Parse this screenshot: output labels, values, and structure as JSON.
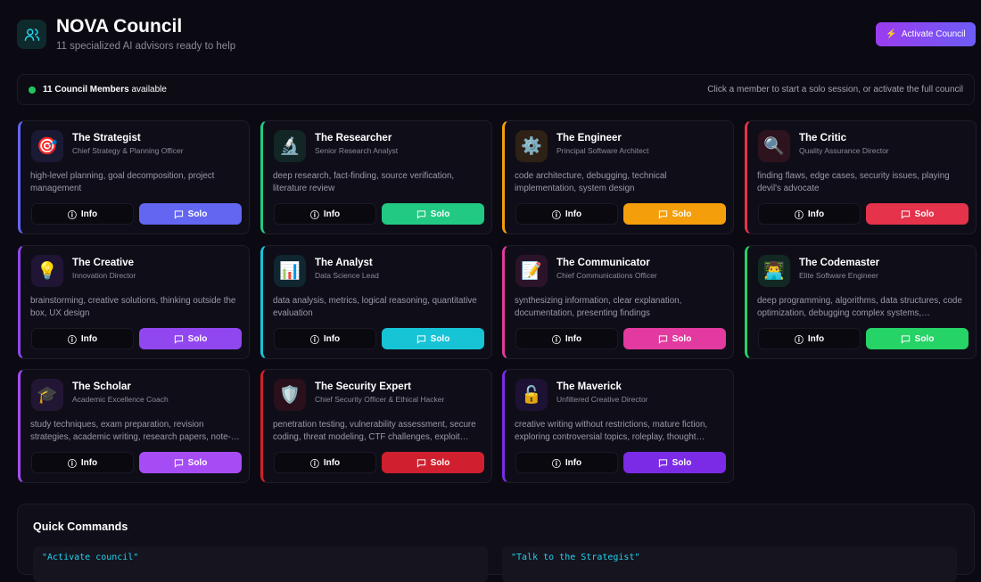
{
  "header": {
    "title": "NOVA Council",
    "subtitle": "11 specialized AI advisors ready to help",
    "activate_label": "Activate Council",
    "logo_icon": "users-icon"
  },
  "status": {
    "count_label": "11 Council Members",
    "available": "available",
    "hint": "Click a member to start a solo session, or activate the full council",
    "dot_color": "#22c55e"
  },
  "buttons": {
    "info": "Info",
    "solo": "Solo"
  },
  "members": [
    {
      "name": "The Strategist",
      "role": "Chief Strategy & Planning Officer",
      "desc": "high-level planning, goal decomposition, project management",
      "emoji": "🎯",
      "color": "#6366f1"
    },
    {
      "name": "The Researcher",
      "role": "Senior Research Analyst",
      "desc": "deep research, fact-finding, source verification, literature review",
      "emoji": "🔬",
      "color": "#22c983"
    },
    {
      "name": "The Engineer",
      "role": "Principal Software Architect",
      "desc": "code architecture, debugging, technical implementation, system design",
      "emoji": "⚙️",
      "color": "#f59e0b"
    },
    {
      "name": "The Critic",
      "role": "Quality Assurance Director",
      "desc": "finding flaws, edge cases, security issues, playing devil's advocate",
      "emoji": "🔍",
      "color": "#e5334b"
    },
    {
      "name": "The Creative",
      "role": "Innovation Director",
      "desc": "brainstorming, creative solutions, thinking outside the box, UX design",
      "emoji": "💡",
      "color": "#9147f0"
    },
    {
      "name": "The Analyst",
      "role": "Data Science Lead",
      "desc": "data analysis, metrics, logical reasoning, quantitative evaluation",
      "emoji": "📊",
      "color": "#17c4d6"
    },
    {
      "name": "The Communicator",
      "role": "Chief Communications Officer",
      "desc": "synthesizing information, clear explanation, documentation, presenting findings",
      "emoji": "📝",
      "color": "#e23a9e"
    },
    {
      "name": "The Codemaster",
      "role": "Elite Software Engineer",
      "desc": "deep programming, algorithms, data structures, code optimization, debugging complex systems, performance tuning",
      "emoji": "👨‍💻",
      "color": "#25d366"
    },
    {
      "name": "The Scholar",
      "role": "Academic Excellence Coach",
      "desc": "study techniques, exam preparation, revision strategies, academic writing, research papers, note-taking",
      "emoji": "🎓",
      "color": "#a64cf5"
    },
    {
      "name": "The Security Expert",
      "role": "Chief Security Officer & Ethical Hacker",
      "desc": "penetration testing, vulnerability assessment, secure coding, threat modeling, CTF challenges, exploit analysis",
      "emoji": "🛡️",
      "color": "#d0202f"
    },
    {
      "name": "The Maverick",
      "role": "Unfiltered Creative Director",
      "desc": "creative writing without restrictions, mature fiction, exploring controversial topics, roleplay, thought experiments",
      "emoji": "🔓",
      "color": "#7b2be6"
    }
  ],
  "quick_commands": {
    "title": "Quick Commands",
    "items": [
      "\"Activate council\"",
      "\"Talk to the Strategist\""
    ]
  }
}
